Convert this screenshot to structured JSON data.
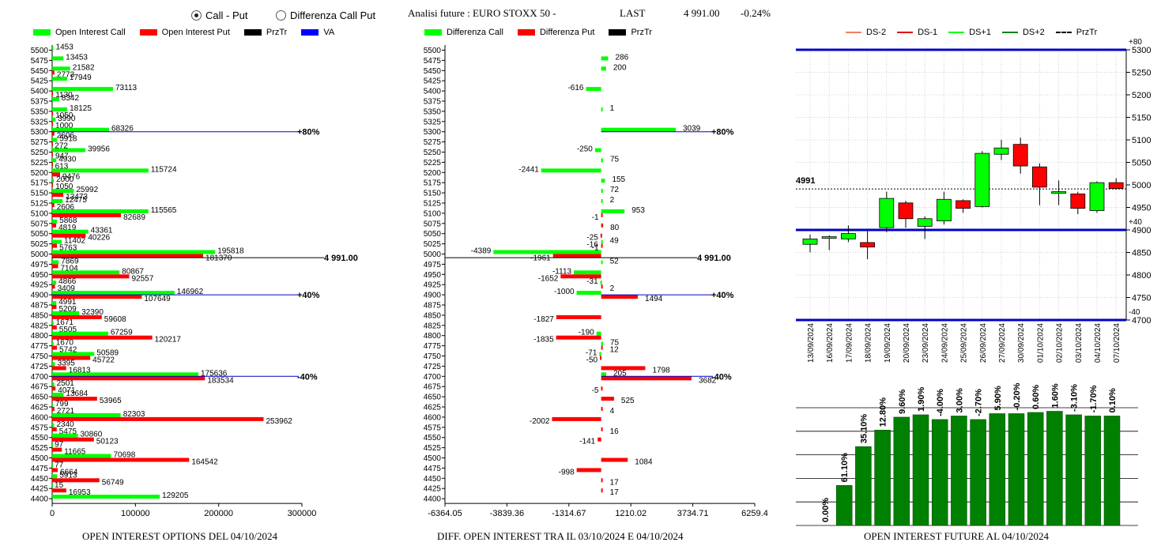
{
  "controls": {
    "radio_call_put": "Call - Put",
    "radio_diff": "Differenza Call Put",
    "selected": "call_put"
  },
  "header": {
    "analisi": "Analisi future : EURO STOXX 50 -",
    "last_label": "LAST",
    "last_value": "4 991.00",
    "change": "-0.24%"
  },
  "colors": {
    "green": "#00ff00",
    "red": "#ff0000",
    "blue": "#0000ff",
    "dark_green": "#008000",
    "navy": "#0000c8"
  },
  "strikes": [
    5500,
    5475,
    5450,
    5425,
    5400,
    5375,
    5350,
    5325,
    5300,
    5275,
    5250,
    5225,
    5200,
    5175,
    5150,
    5125,
    5100,
    5075,
    5050,
    5025,
    5000,
    4975,
    4950,
    4925,
    4900,
    4875,
    4850,
    4825,
    4800,
    4775,
    4750,
    4725,
    4700,
    4675,
    4650,
    4625,
    4600,
    4575,
    4550,
    4525,
    4500,
    4475,
    4450,
    4425,
    4400
  ],
  "legend1": {
    "call": "Open Interest Call",
    "put": "Open Interest Put",
    "prz": "PrzTr",
    "va": "VA"
  },
  "legend2": {
    "call": "Differenza Call",
    "put": "Differenza Put",
    "prz": "PrzTr"
  },
  "legend3": {
    "dsm2": "DS-2",
    "dsm1": "DS-1",
    "dsp1": "DS+1",
    "dsp2": "DS+2",
    "prz": "PrzTr"
  },
  "chart_data": [
    {
      "type": "bar",
      "orientation": "horizontal",
      "footer": "OPEN INTEREST OPTIONS DEL 04/10/2024",
      "xlim": [
        0,
        300000
      ],
      "xticks": [
        "0",
        "100000",
        "200000",
        "300000"
      ],
      "series": [
        {
          "name": "Open Interest Call",
          "values": [
            1453,
            13453,
            21582,
            17949,
            73113,
            8342,
            18125,
            3990,
            68326,
            5918,
            39956,
            4930,
            115724,
            2000,
            25992,
            12475,
            115565,
            5868,
            43361,
            11402,
            195818,
            7869,
            80867,
            4866,
            146962,
            4991,
            32390,
            1671,
            67259,
            1670,
            50589,
            3395,
            175636,
            2501,
            13684,
            799,
            82303,
            2340,
            30860,
            97,
            70698,
            77,
            5913,
            15,
            129205
          ]
        },
        {
          "name": "Open Interest Put",
          "values": [
            0,
            0,
            2773,
            0,
            1130,
            0,
            1050,
            1000,
            2606,
            272,
            947,
            613,
            9476,
            1050,
            13473,
            2606,
            82689,
            4819,
            40226,
            5763,
            181370,
            7104,
            92557,
            3409,
            107649,
            5209,
            59608,
            5505,
            120217,
            5742,
            45722,
            16813,
            183534,
            4071,
            53965,
            2721,
            253962,
            5475,
            50123,
            11665,
            164542,
            6664,
            56749,
            16953,
            0
          ]
        }
      ],
      "reference_lines": [
        {
          "label": "+80%",
          "strike": 5300
        },
        {
          "label": "4 991.00",
          "strike": 4991
        },
        {
          "label": "+40%",
          "strike": 4900
        },
        {
          "label": "-40%",
          "strike": 4700
        }
      ]
    },
    {
      "type": "bar",
      "orientation": "horizontal",
      "footer": "DIFF. OPEN INTEREST TRA IL 03/10/2024 E 04/10/2024",
      "xlim": [
        -6364.05,
        6259.4
      ],
      "xticks": [
        "-6364.05",
        "-3839.36",
        "-1314.67",
        "1210.02",
        "3734.71",
        "6259.4"
      ],
      "labels": {
        "call": [
          "",
          "286",
          "200",
          "",
          "-616",
          "",
          "1",
          "",
          "3039",
          "",
          "-250",
          "75",
          "-2441",
          "155",
          "72",
          "2",
          "953",
          "",
          "",
          "49",
          "-4389",
          "52",
          "-1113",
          "-31",
          "-1000",
          "",
          "",
          "",
          "-190",
          "75",
          "-71",
          "",
          "205",
          "",
          "",
          "",
          "",
          "",
          "",
          "",
          "",
          "",
          "",
          "",
          ""
        ],
        "put": [
          "",
          "",
          "",
          "",
          "",
          "",
          "",
          "",
          "",
          "",
          "",
          "",
          "",
          "",
          "",
          "",
          "-1",
          "80",
          "-25;-16",
          "-1",
          "-1961",
          "",
          "-1652",
          "2",
          "1494",
          "",
          "-1827",
          "",
          "-1835",
          "12",
          "-50",
          "1798",
          "3682",
          "-5",
          "525",
          "4",
          "-2002",
          "16",
          "-141",
          "",
          "1084",
          "-998",
          "17",
          "17",
          ""
        ]
      },
      "series": [
        {
          "name": "Differenza Call",
          "values": [
            0,
            286,
            200,
            0,
            -616,
            0,
            1,
            0,
            3039,
            0,
            -250,
            75,
            -2441,
            155,
            72,
            2,
            953,
            0,
            0,
            49,
            -4389,
            52,
            -1113,
            -31,
            -1000,
            0,
            0,
            0,
            -190,
            75,
            -71,
            0,
            205,
            0,
            0,
            0,
            0,
            0,
            0,
            0,
            0,
            0,
            0,
            0,
            0
          ]
        },
        {
          "name": "Differenza Put",
          "values": [
            0,
            0,
            0,
            0,
            0,
            0,
            0,
            0,
            0,
            0,
            0,
            0,
            0,
            0,
            0,
            0,
            -1,
            80,
            -25,
            -1,
            -1961,
            0,
            -1652,
            2,
            1494,
            0,
            -1827,
            0,
            -1835,
            12,
            -50,
            1798,
            3682,
            -5,
            525,
            4,
            -2002,
            16,
            -141,
            0,
            1084,
            -998,
            17,
            17,
            0
          ]
        }
      ],
      "reference_lines": [
        {
          "label": "+80%",
          "strike": 5300
        },
        {
          "label": "4 991.00",
          "strike": 4991
        },
        {
          "label": "+40%",
          "strike": 4900
        },
        {
          "label": "-40%",
          "strike": 4700
        }
      ]
    },
    {
      "type": "candlestick",
      "ylim": [
        4700,
        5300
      ],
      "yticks": [
        5300,
        5250,
        5200,
        5150,
        5100,
        5050,
        5000,
        4950,
        4900,
        4850,
        4800,
        4750,
        4700
      ],
      "dates": [
        "13/09/2024",
        "16/09/2024",
        "17/09/2024",
        "18/09/2024",
        "19/09/2024",
        "20/09/2024",
        "23/09/2024",
        "24/09/2024",
        "25/09/2024",
        "26/09/2024",
        "27/09/2024",
        "30/09/2024",
        "01/10/2024",
        "02/10/2024",
        "03/10/2024",
        "04/10/2024",
        "07/10/2024"
      ],
      "ohlc": [
        [
          4868,
          4890,
          4850,
          4880
        ],
        [
          4883,
          4888,
          4855,
          4885
        ],
        [
          4880,
          4910,
          4873,
          4892
        ],
        [
          4872,
          4898,
          4835,
          4862
        ],
        [
          4905,
          4985,
          4895,
          4970
        ],
        [
          4960,
          4965,
          4905,
          4925
        ],
        [
          4908,
          4930,
          4880,
          4925
        ],
        [
          4920,
          4985,
          4912,
          4968
        ],
        [
          4965,
          4968,
          4938,
          4948
        ],
        [
          4952,
          5075,
          4950,
          5070
        ],
        [
          5068,
          5100,
          5055,
          5082
        ],
        [
          5090,
          5105,
          5025,
          5042
        ],
        [
          5040,
          5048,
          4955,
          4995
        ],
        [
          4985,
          5010,
          4955,
          4985
        ],
        [
          4980,
          4985,
          4935,
          4948
        ],
        [
          4943,
          5008,
          4938,
          5005
        ],
        [
          5005,
          5015,
          4990,
          4992
        ]
      ],
      "price_label": "4991",
      "price_line": 4991,
      "bands": [
        {
          "label": "+80",
          "value": 5300
        },
        {
          "label": "+40",
          "value": 4900
        },
        {
          "label": "-40",
          "value": 4700
        }
      ]
    },
    {
      "type": "bar",
      "footer": "OPEN INTEREST FUTURE AL 04/10/2024",
      "labels": [
        "0.00%",
        "61.10%",
        "35.10%",
        "12.80%",
        "9.60%",
        "1.90%",
        "-4.00%",
        "3.00%",
        "-2.70%",
        "5.90%",
        "-0.20%",
        "0.60%",
        "1.60%",
        "-3.10%",
        "-1.70%",
        "0.10%"
      ],
      "values": [
        0,
        0.34,
        0.67,
        0.81,
        0.92,
        0.94,
        0.9,
        0.93,
        0.9,
        0.95,
        0.95,
        0.96,
        0.97,
        0.94,
        0.93,
        0.93
      ]
    }
  ]
}
